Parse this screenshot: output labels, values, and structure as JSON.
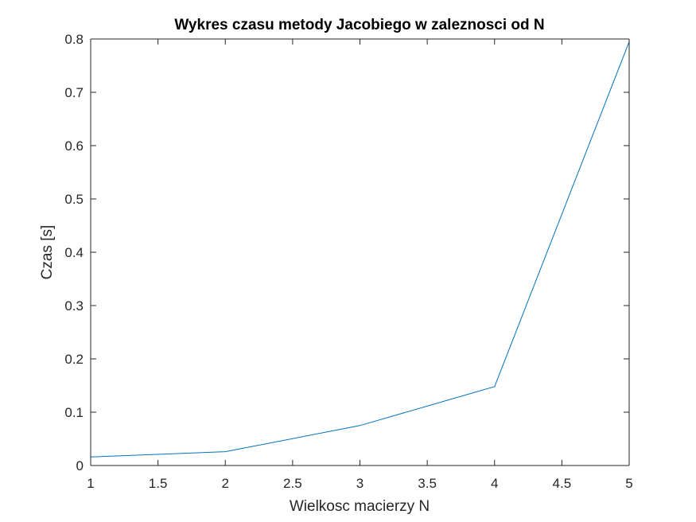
{
  "chart_data": {
    "type": "line",
    "title": "Wykres czasu metody Jacobiego w zaleznosci od N",
    "xlabel": "Wielkosc macierzy N",
    "ylabel": "Czas [s]",
    "xlim": [
      1,
      5
    ],
    "ylim": [
      0,
      0.8
    ],
    "xticks": [
      1,
      1.5,
      2,
      2.5,
      3,
      3.5,
      4,
      4.5,
      5
    ],
    "xtick_labels": [
      "1",
      "1.5",
      "2",
      "2.5",
      "3",
      "3.5",
      "4",
      "4.5",
      "5"
    ],
    "yticks": [
      0,
      0.1,
      0.2,
      0.3,
      0.4,
      0.5,
      0.6,
      0.7,
      0.8
    ],
    "ytick_labels": [
      "0",
      "0.1",
      "0.2",
      "0.3",
      "0.4",
      "0.5",
      "0.6",
      "0.7",
      "0.8"
    ],
    "grid": false,
    "series": [
      {
        "x": [
          1,
          2,
          3,
          4,
          5
        ],
        "values": [
          0.016,
          0.026,
          0.075,
          0.148,
          0.795
        ],
        "color": "#0072BD"
      }
    ],
    "axis_color": "#262626"
  }
}
